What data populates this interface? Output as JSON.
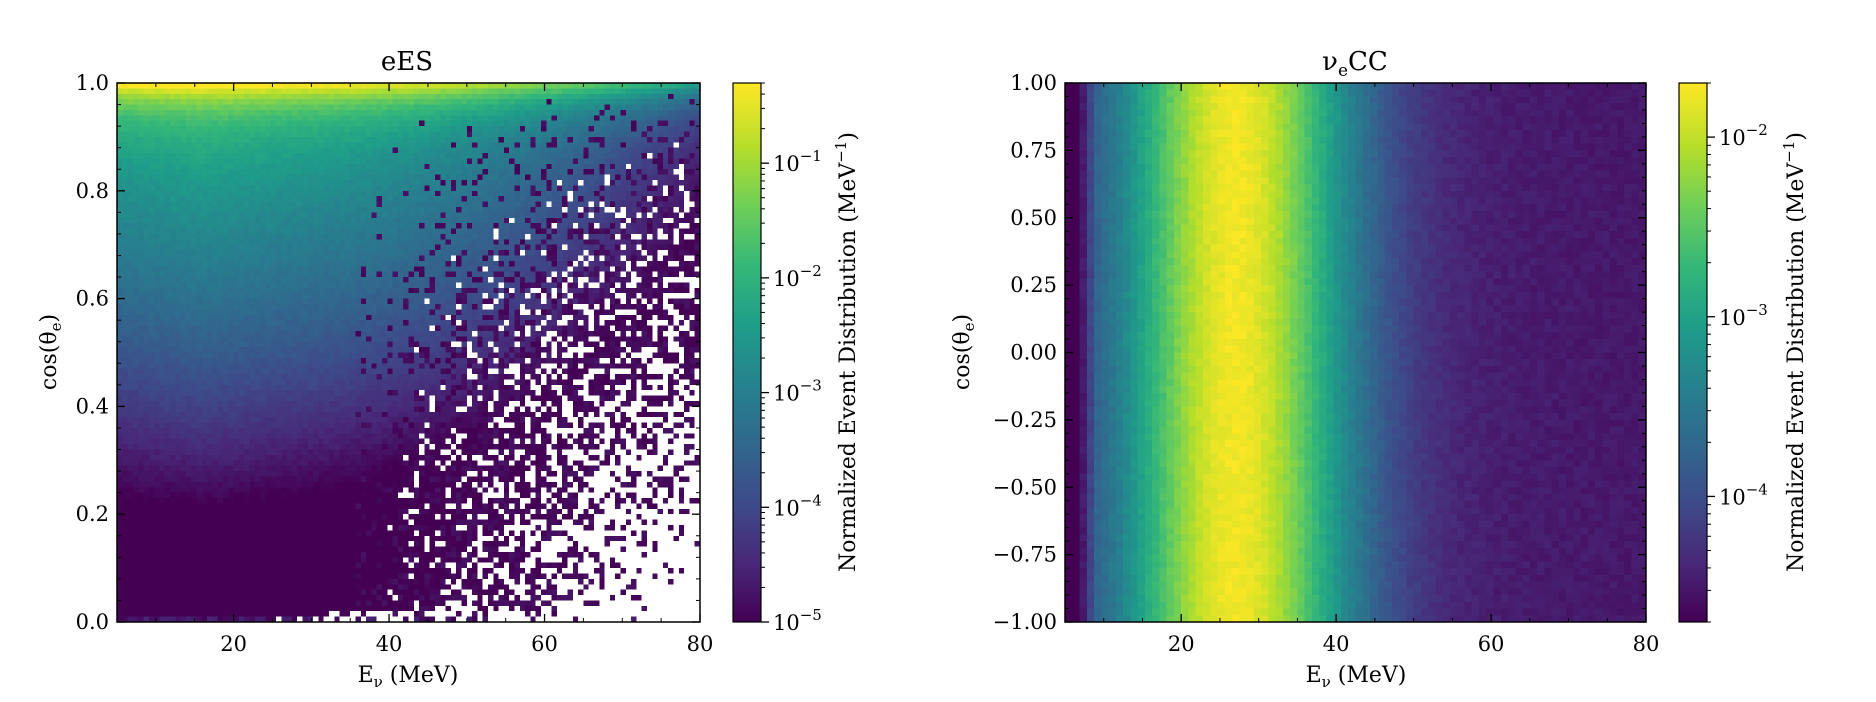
{
  "chart_data": [
    {
      "type": "heatmap",
      "title": "eES",
      "xlabel": "E",
      "xlabel_sub": "ν",
      "xlabel_unit": " (MeV)",
      "ylabel": "cos(θ",
      "ylabel_sub": "e",
      "ylabel_end": ")",
      "xlim": [
        5,
        80
      ],
      "ylim": [
        0,
        1
      ],
      "xticks": [
        20,
        40,
        60,
        80
      ],
      "xtick_labels": [
        "20",
        "40",
        "60",
        "80"
      ],
      "yticks": [
        0,
        0.2,
        0.4,
        0.6,
        0.8,
        1.0
      ],
      "ytick_labels": [
        "0.0",
        "0.2",
        "0.4",
        "0.6",
        "0.8",
        "1.0"
      ],
      "colorbar": {
        "label": "Normalized Event Distribution (MeV",
        "label_sup": "−1",
        "label_end": ")",
        "scale": "log",
        "range": [
          1e-05,
          0.5
        ],
        "ticks": [
          1e-05,
          0.0001,
          0.001,
          0.01,
          0.1
        ],
        "tick_labels": [
          {
            "base": "10",
            "exp": "−5"
          },
          {
            "base": "10",
            "exp": "−4"
          },
          {
            "base": "10",
            "exp": "−3"
          },
          {
            "base": "10",
            "exp": "−2"
          },
          {
            "base": "10",
            "exp": "−1"
          }
        ]
      },
      "bins": {
        "x": 110,
        "y": 100
      },
      "distribution": "forward-peaked; strongest near cos(θe)=1 and low E (~15 MeV); sparse, noisy with empty bins for E > 35 MeV at low cos(θe)"
    },
    {
      "type": "heatmap",
      "title": "ν",
      "title_sub": "e",
      "title_end": "CC",
      "xlabel": "E",
      "xlabel_sub": "ν",
      "xlabel_unit": " (MeV)",
      "ylabel": "cos(θ",
      "ylabel_sub": "e",
      "ylabel_end": ")",
      "xlim": [
        5,
        80
      ],
      "ylim": [
        -1,
        1
      ],
      "xticks": [
        20,
        40,
        60,
        80
      ],
      "xtick_labels": [
        "20",
        "40",
        "60",
        "80"
      ],
      "yticks": [
        -1.0,
        -0.75,
        -0.5,
        -0.25,
        0.0,
        0.25,
        0.5,
        0.75,
        1.0
      ],
      "ytick_labels": [
        "−1.00",
        "−0.75",
        "−0.50",
        "−0.25",
        "0.00",
        "0.25",
        "0.50",
        "0.75",
        "1.00"
      ],
      "colorbar": {
        "label": "Normalized Event Distribution (MeV",
        "label_sup": "−1",
        "label_end": ")",
        "scale": "log",
        "range": [
          2e-05,
          0.02
        ],
        "ticks": [
          0.0001,
          0.001,
          0.01
        ],
        "tick_labels": [
          {
            "base": "10",
            "exp": "−4"
          },
          {
            "base": "10",
            "exp": "−3"
          },
          {
            "base": "10",
            "exp": "−2"
          }
        ]
      },
      "bins": {
        "x": 80,
        "y": 80
      },
      "distribution": "nearly isotropic in cos(θe); peaks around E ≈ 25–30 MeV, falling toward low and high energy"
    }
  ],
  "colors": {
    "viridis": [
      "#440154",
      "#482878",
      "#3e4a89",
      "#31688e",
      "#26828e",
      "#1f9e89",
      "#35b779",
      "#6ece58",
      "#b5de2b",
      "#fde725"
    ],
    "empty_bin": "#ffffff"
  }
}
